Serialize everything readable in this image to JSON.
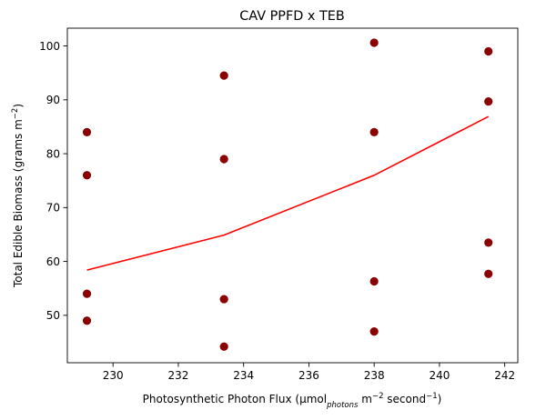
{
  "chart_data": {
    "type": "scatter",
    "title": "CAV PPFD x TEB",
    "xlabel": {
      "base": "Photosynthetic Photon Flux (µmol",
      "sub": "photons",
      "mid1": " m",
      "sup1": "−2",
      "mid2": " second",
      "sup2": "−1",
      "end": ")"
    },
    "ylabel": {
      "base": "Total Edible Biomass (grams m",
      "sup": "−2",
      "end": ")"
    },
    "xlim": [
      228.6,
      242.4
    ],
    "ylim": [
      41.2,
      103.3
    ],
    "xticks": [
      230,
      232,
      234,
      236,
      238,
      240,
      242
    ],
    "yticks": [
      50,
      60,
      70,
      80,
      90,
      100
    ],
    "grid": false,
    "colors": {
      "points": "#8b0000",
      "fit_line": "#ff0000"
    },
    "series": [
      {
        "kind": "points",
        "x": [
          229.2,
          229.2,
          229.2,
          229.2,
          233.4,
          233.4,
          233.4,
          233.4,
          238.0,
          238.0,
          238.0,
          238.0,
          241.5,
          241.5,
          241.5,
          241.5
        ],
        "y": [
          84.0,
          76.0,
          54.0,
          49.0,
          94.5,
          79.0,
          53.0,
          44.2,
          100.6,
          84.0,
          56.3,
          47.0,
          99.0,
          89.7,
          63.5,
          57.7
        ]
      },
      {
        "kind": "line",
        "x": [
          229.2,
          233.4,
          238.0,
          241.5
        ],
        "y": [
          58.4,
          64.9,
          76.0,
          86.9
        ]
      }
    ]
  }
}
